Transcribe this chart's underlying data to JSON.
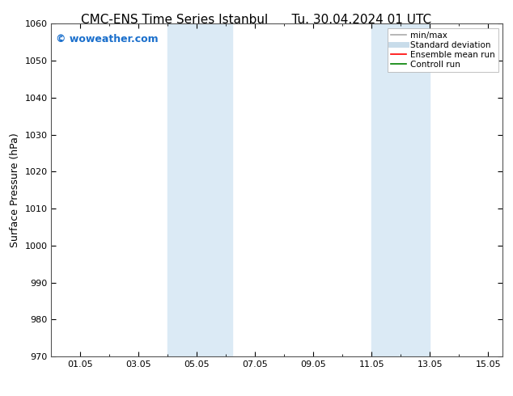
{
  "title_left": "CMC-ENS Time Series Istanbul",
  "title_right": "Tu. 30.04.2024 01 UTC",
  "ylabel": "Surface Pressure (hPa)",
  "ylim": [
    970,
    1060
  ],
  "yticks": [
    970,
    980,
    990,
    1000,
    1010,
    1020,
    1030,
    1040,
    1050,
    1060
  ],
  "xlim": [
    0.0,
    15.5
  ],
  "xtick_labels": [
    "01.05",
    "03.05",
    "05.05",
    "07.05",
    "09.05",
    "11.05",
    "13.05",
    "15.05"
  ],
  "xtick_positions": [
    1,
    3,
    5,
    7,
    9,
    11,
    13,
    15
  ],
  "background_color": "#ffffff",
  "plot_bg_color": "#ffffff",
  "shaded_bands": [
    {
      "x_start": 4.0,
      "x_end": 5.5,
      "color": "#ddeeff"
    },
    {
      "x_start": 5.5,
      "x_end": 6.3,
      "color": "#ddeeff"
    },
    {
      "x_start": 11.0,
      "x_end": 12.0,
      "color": "#ddeeff"
    },
    {
      "x_start": 12.0,
      "x_end": 13.0,
      "color": "#ddeeff"
    }
  ],
  "legend_items": [
    {
      "label": "min/max",
      "color": "#aaaaaa",
      "lw": 1.2
    },
    {
      "label": "Standard deviation",
      "color": "#c8dcea",
      "lw": 5
    },
    {
      "label": "Ensemble mean run",
      "color": "#ff0000",
      "lw": 1.2
    },
    {
      "label": "Controll run",
      "color": "#008000",
      "lw": 1.2
    }
  ],
  "watermark": "© woweather.com",
  "watermark_color": "#1a6fcc",
  "watermark_fontsize": 9,
  "title_fontsize": 11,
  "tick_fontsize": 8,
  "ylabel_fontsize": 9,
  "legend_fontsize": 7.5,
  "grid_color": "#cccccc",
  "spine_color": "#555555"
}
